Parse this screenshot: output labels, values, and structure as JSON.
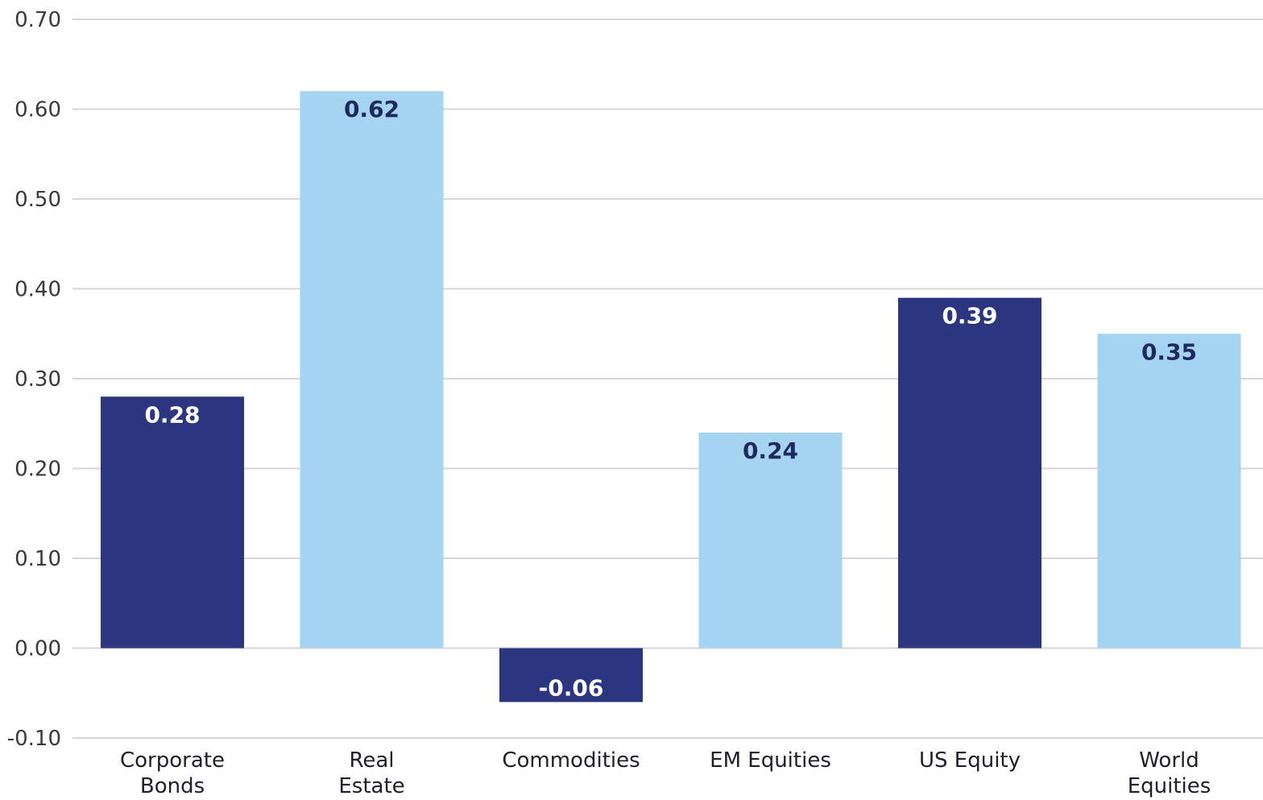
{
  "chart_data": {
    "type": "bar",
    "title": "",
    "xlabel": "",
    "ylabel": "",
    "ylim": [
      -0.1,
      0.7
    ],
    "yticks": [
      -0.1,
      0.0,
      0.1,
      0.2,
      0.3,
      0.4,
      0.5,
      0.6,
      0.7
    ],
    "ytick_labels": [
      "-0.10",
      "0.00",
      "0.10",
      "0.20",
      "0.30",
      "0.40",
      "0.50",
      "0.60",
      "0.70"
    ],
    "grid": true,
    "categories": [
      [
        "Corporate",
        "Bonds"
      ],
      [
        "Real",
        "Estate"
      ],
      [
        "Commodities"
      ],
      [
        "EM Equities"
      ],
      [
        "US Equity"
      ],
      [
        "World",
        "Equities"
      ]
    ],
    "values": [
      0.28,
      0.62,
      -0.06,
      0.24,
      0.39,
      0.35
    ],
    "value_labels": [
      "0.28",
      "0.62",
      "-0.06",
      "0.24",
      "0.39",
      "0.35"
    ],
    "bar_colors": [
      "#2b3580",
      "#a4d4f1",
      "#2b3580",
      "#a4d4f1",
      "#2b3580",
      "#a4d4f1"
    ],
    "label_colors": [
      "#ffffff",
      "#1f2a5c",
      "#ffffff",
      "#1f2a5c",
      "#ffffff",
      "#1f2a5c"
    ],
    "colors": {
      "dark": "#2b3580",
      "light": "#a4d4f1",
      "grid": "#d6d6d6"
    }
  }
}
